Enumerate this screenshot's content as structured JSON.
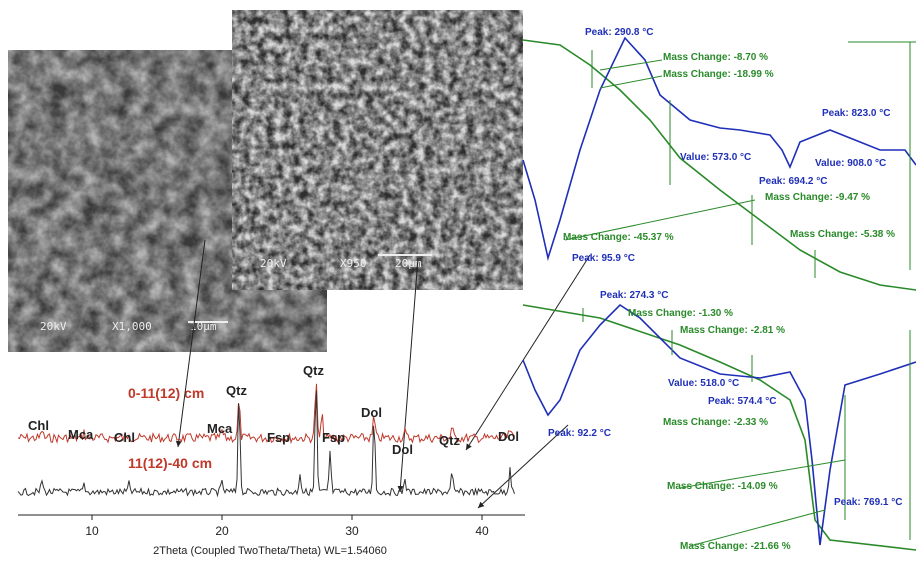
{
  "sem_images": [
    {
      "voltage": "20kV",
      "magnification": "X1,000",
      "scale": "10μm"
    },
    {
      "voltage": "20kV",
      "magnification": "X950",
      "scale": "20μm"
    }
  ],
  "xrd": {
    "samples": [
      "0-11(12) cm",
      "11(12)-40 cm"
    ],
    "peak_labels": [
      "Chl",
      "Mca",
      "Chl",
      "Mca",
      "Qtz",
      "Qtz",
      "Fsp",
      "Fsp",
      "Dol",
      "Dol",
      "Qtz",
      "Dol"
    ],
    "x_ticks": [
      10,
      20,
      30,
      40
    ],
    "x_label": "2Theta (Coupled TwoTheta/Theta) WL=1.54060"
  },
  "thermal": {
    "top": [
      "Peak: 290.8 °C",
      "Mass Change: -8.70 %",
      "Mass Change: -18.99 %",
      "Peak: 823.0 °C",
      "Value: 573.0 °C",
      "Value: 908.0 °C",
      "Peak: 694.2 °C",
      "Mass Change: -9.47 %",
      "Mass Change: -45.37 %",
      "Mass Change: -5.38 %",
      "Peak: 95.9 °C"
    ],
    "bottom": [
      "Peak: 274.3 °C",
      "Mass Change: -1.30 %",
      "Mass Change: -2.81 %",
      "Value: 518.0 °C",
      "Peak: 574.4 °C",
      "Peak: 92.2 °C",
      "Mass Change: -2.33 %",
      "Mass Change: -14.09 %",
      "Peak: 769.1 °C",
      "Mass Change: -21.66 %"
    ]
  }
}
